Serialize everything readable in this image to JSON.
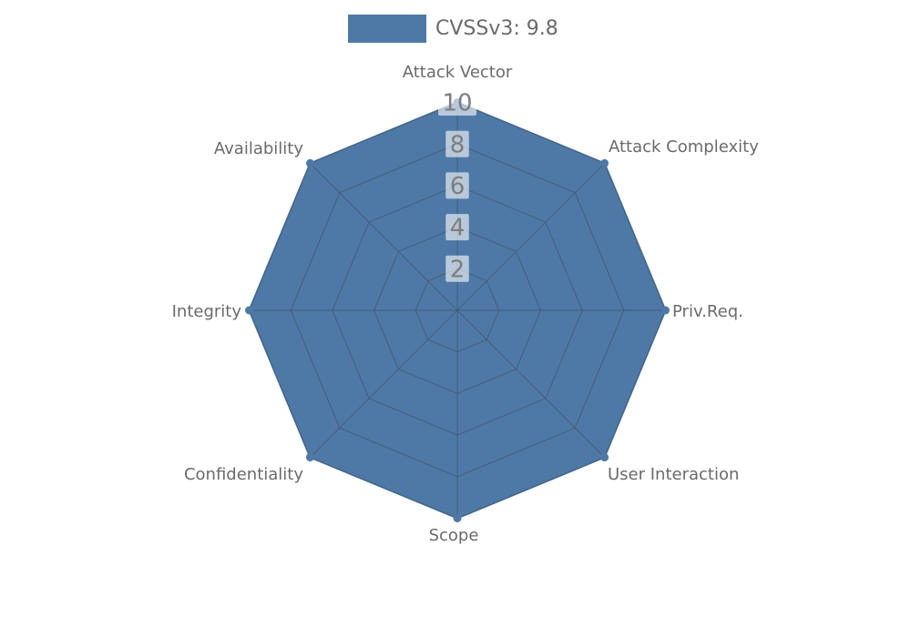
{
  "chart_data": {
    "type": "radar",
    "title": "",
    "legend": {
      "position": "top-center",
      "label": "CVSSv3: 9.8"
    },
    "categories": [
      "Attack Vector",
      "Attack Complexity",
      "Priv.Req.",
      "User Interaction",
      "Scope",
      "Confidentiality",
      "Integrity",
      "Availability"
    ],
    "series": [
      {
        "name": "CVSSv3: 9.8",
        "values": [
          10,
          10,
          10,
          10,
          10,
          10,
          10,
          10
        ],
        "color": "#4e79a7"
      }
    ],
    "radial_axis": {
      "min": 0,
      "max": 10,
      "ticks": [
        2,
        4,
        6,
        8,
        10
      ]
    },
    "grid": true,
    "layout_hints": {
      "grid_shape": "polygon",
      "axes_count": 8,
      "first_axis": "top",
      "direction": "clockwise"
    },
    "colors": {
      "fill": "#4e79a7",
      "grid_line": "#3e4d5e",
      "axis_label": "#6a6a6a",
      "tick_label": "#7d7d7d",
      "tick_box_bg": "#ffffff",
      "background": "#ffffff"
    }
  }
}
